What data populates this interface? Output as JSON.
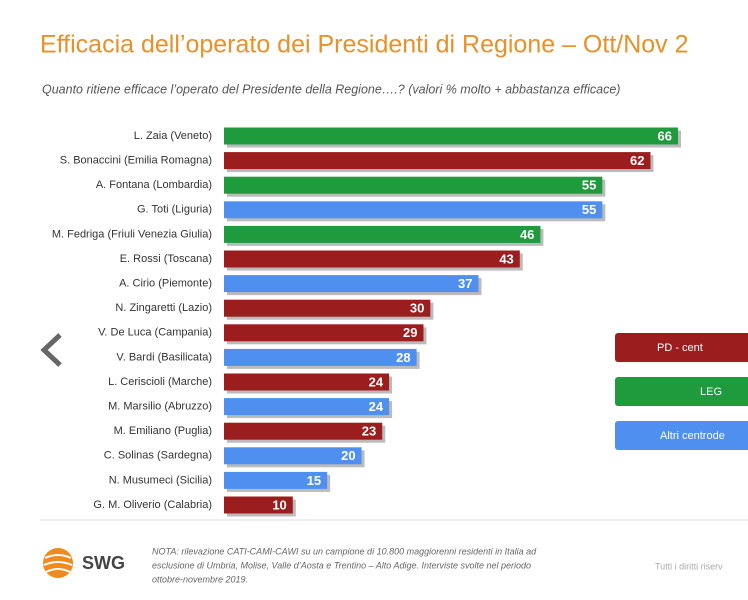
{
  "chart_data": {
    "type": "bar",
    "orientation": "horizontal",
    "title": "Efficacia dell’operato dei Presidenti di Regione – Ott/Nov 2",
    "subtitle": "Quanto ritiene efficace l’operato del Presidente della Regione….? (valori % molto + abbastanza efficace)",
    "categories": [
      "L. Zaia (Veneto)",
      "S. Bonaccini (Emilia Romagna)",
      "A. Fontana (Lombardia)",
      "G. Toti (Liguria)",
      "M. Fedriga (Friuli Venezia Giulia)",
      "E. Rossi (Toscana)",
      "A. Cirio (Piemonte)",
      "N. Zingaretti (Lazio)",
      "V. De Luca (Campania)",
      "V. Bardi (Basilicata)",
      "L. Ceriscioli (Marche)",
      "M. Marsilio (Abruzzo)",
      "M. Emiliano (Puglia)",
      "C. Solinas (Sardegna)",
      "N. Musumeci (Sicilia)",
      "G. M. Oliverio (Calabria)"
    ],
    "values": [
      66,
      62,
      55,
      55,
      46,
      43,
      37,
      30,
      29,
      28,
      24,
      24,
      23,
      20,
      15,
      10
    ],
    "colors": [
      "#1f9a3c",
      "#9c1d1d",
      "#1f9a3c",
      "#4f8ff0",
      "#1f9a3c",
      "#9c1d1d",
      "#4f8ff0",
      "#9c1d1d",
      "#9c1d1d",
      "#4f8ff0",
      "#9c1d1d",
      "#4f8ff0",
      "#9c1d1d",
      "#4f8ff0",
      "#4f8ff0",
      "#9c1d1d"
    ],
    "legend": [
      {
        "name": "PD - cent",
        "color": "#9c1d1d"
      },
      {
        "name": "LEG",
        "color": "#1f9a3c"
      },
      {
        "name": "Altri centrode",
        "color": "#4f8ff0"
      }
    ],
    "note": [
      "NOTA: rilevazione CATI-CAMI-CAWI su un campione di 10.800 maggiorenni residenti in Italia ad",
      "esclusione di Umbria, Molise, Valle d’Aosta e Trentino – Alto Adige. Interviste svolte nel periodo",
      "ottobre-novembre 2019."
    ],
    "brand": "SWG",
    "rights": "Tutti i diritti riserv"
  }
}
